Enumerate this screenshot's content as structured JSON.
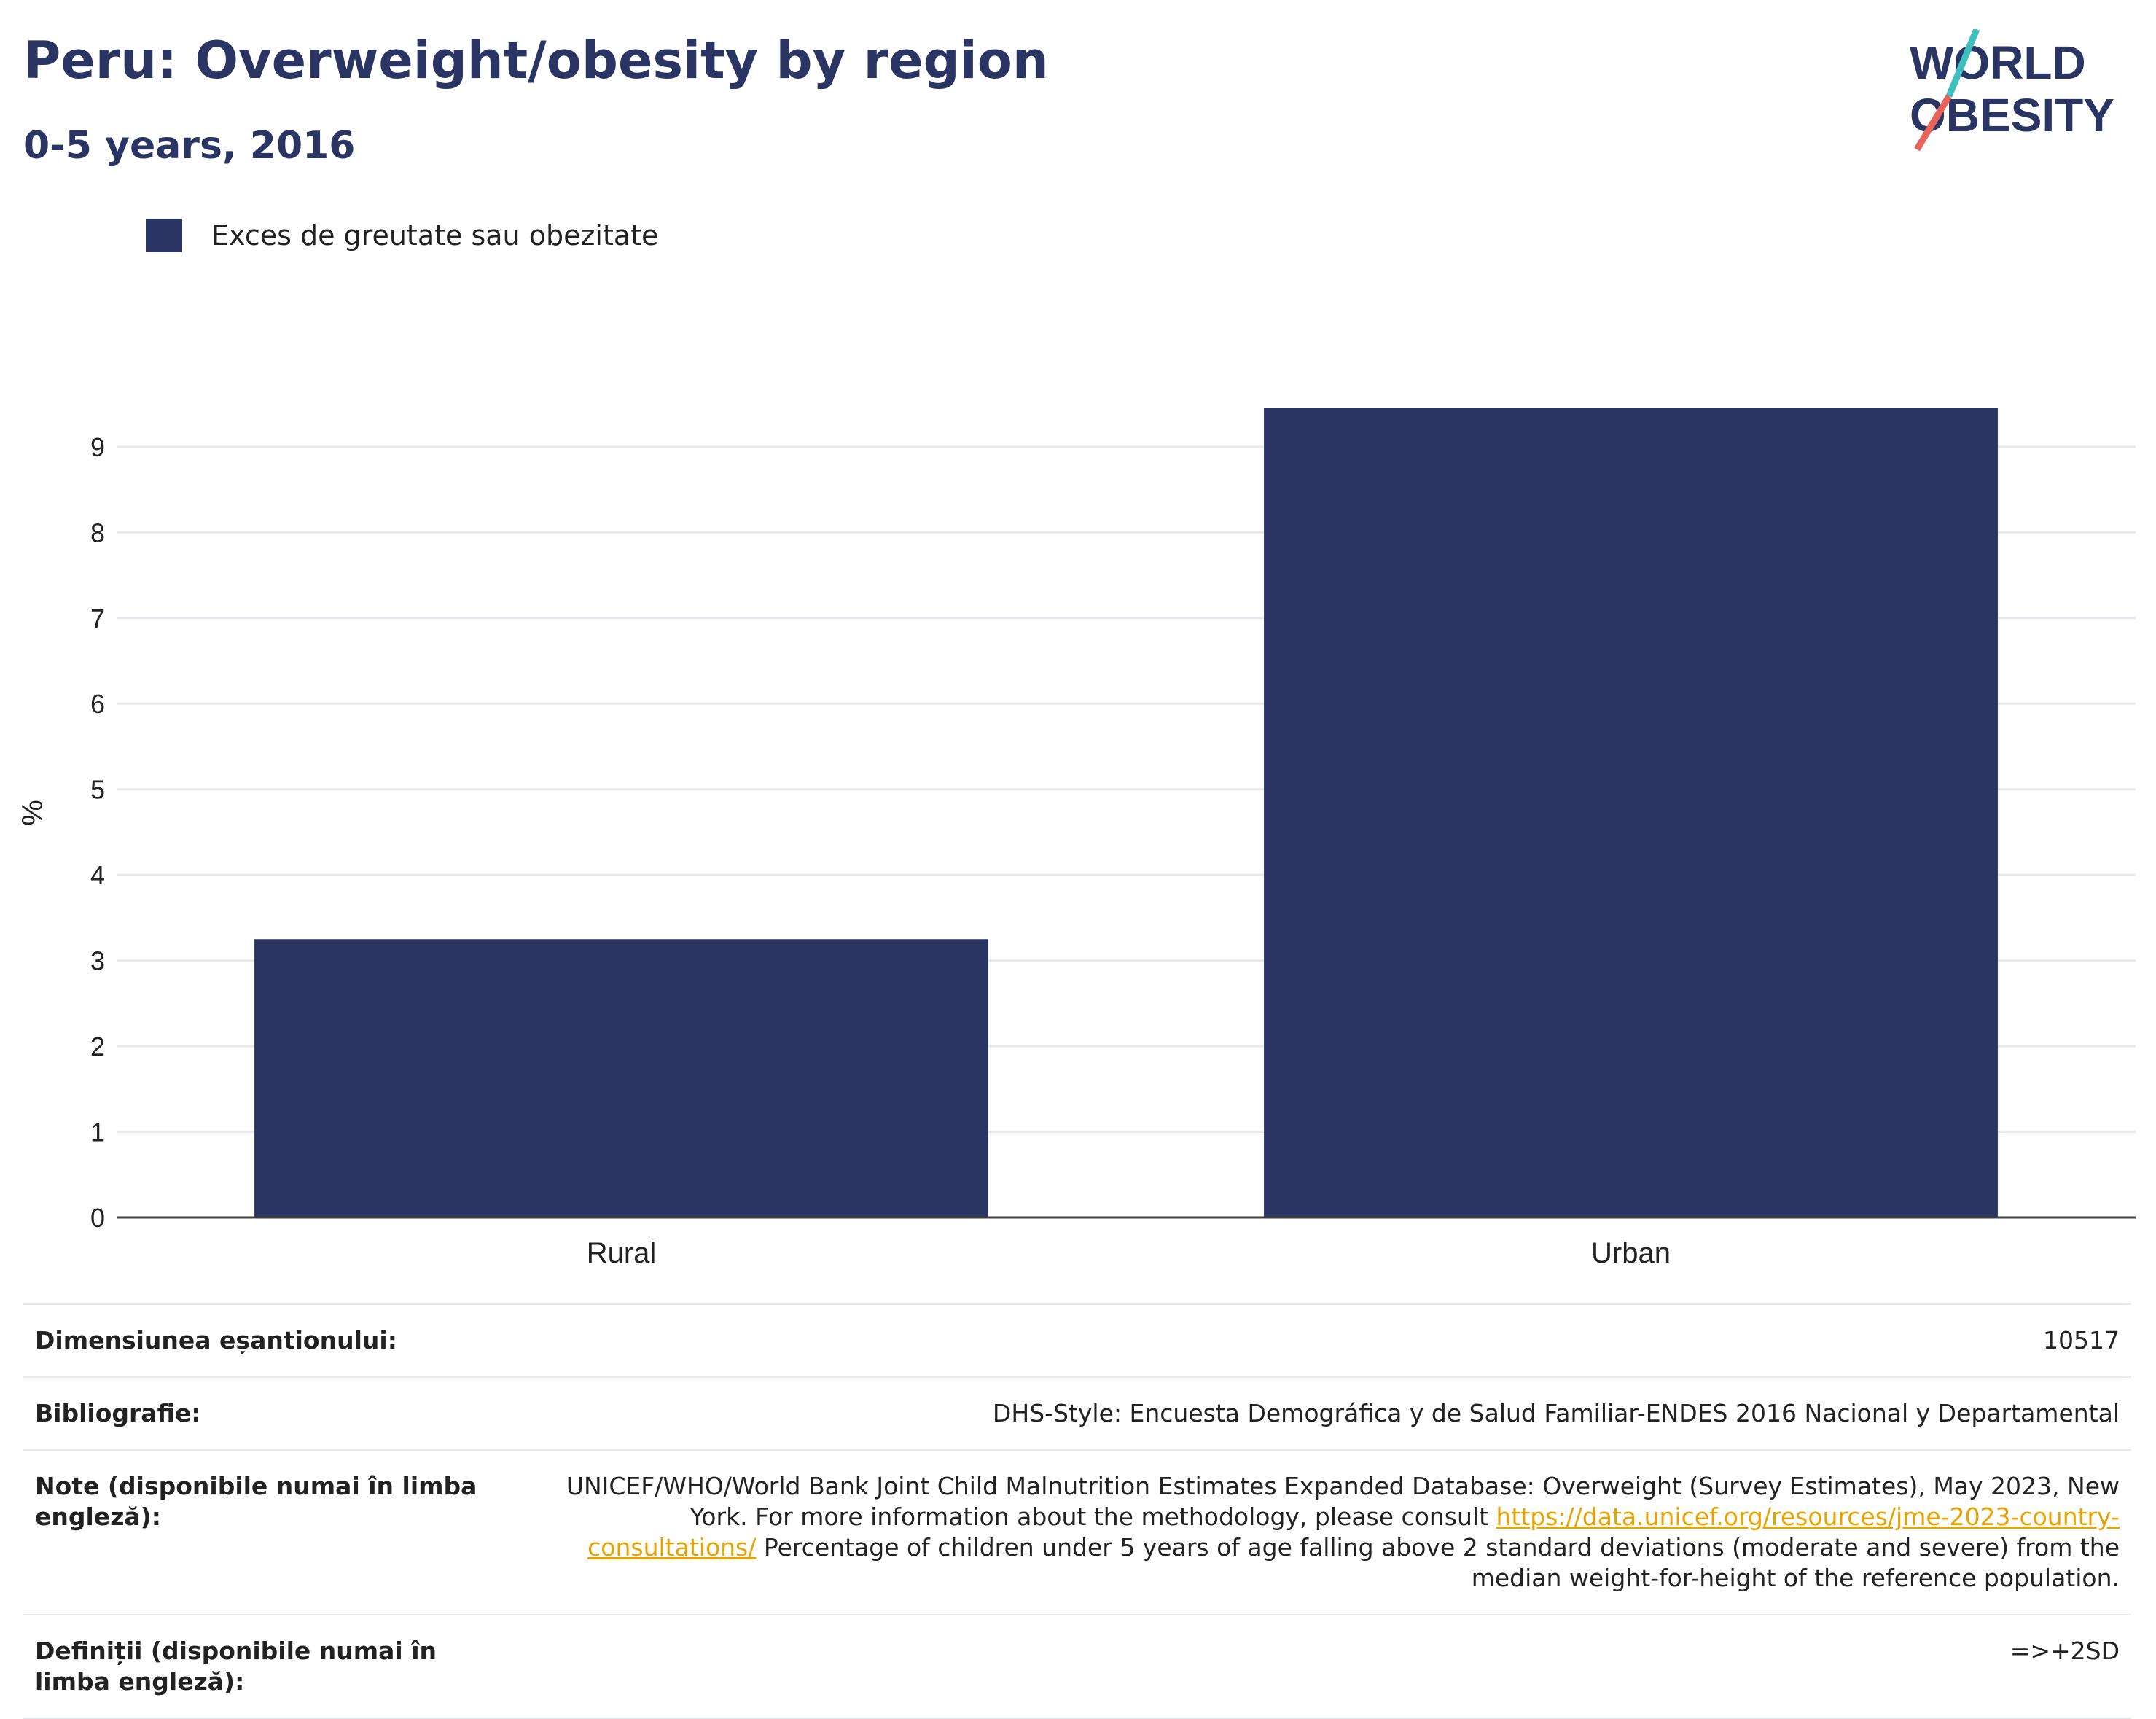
{
  "header": {
    "title": "Peru: Overweight/obesity by region",
    "subtitle": "0-5 years, 2016"
  },
  "logo": {
    "line1": "WORLD",
    "line2": "OBESITY"
  },
  "legend": {
    "label": "Exces de greutate sau obezitate"
  },
  "colors": {
    "bar": "#2a3563",
    "title": "#2a3563",
    "grid": "#e6e9f0",
    "logo_teal": "#3fbfbf",
    "logo_red": "#e8645a",
    "link": "#e8a200"
  },
  "chart_data": {
    "type": "bar",
    "categories": [
      "Rural",
      "Urban"
    ],
    "series": [
      {
        "name": "Exces de greutate sau obezitate",
        "values": [
          3.25,
          9.45
        ]
      }
    ],
    "ylabel": "%",
    "ylim": [
      0,
      9.45
    ],
    "yticks": [
      0,
      1,
      2,
      3,
      4,
      5,
      6,
      7,
      8,
      9
    ],
    "grid": true,
    "legend_position": "top-left"
  },
  "footer": {
    "sample_label": "Dimensiunea eșantionului:",
    "sample_value": "10517",
    "bib_label": "Bibliografie:",
    "bib_value": "DHS-Style: Encuesta Demográfica y de Salud Familiar-ENDES 2016 Nacional y Departamental",
    "notes_label": "Note (disponibile numai în limba engleză):",
    "notes_text_1": "UNICEF/WHO/World Bank Joint Child Malnutrition Estimates Expanded Database: Overweight (Survey Estimates), May 2023, New York. For more information about the methodology, please consult ",
    "notes_link": "https://data.unicef.org/resources/jme-2023-country-consultations/",
    "notes_text_2": " Percentage of children under 5 years of age falling above 2 standard deviations (moderate and severe) from the median weight-for-height of the reference population.",
    "def_label": "Definiții (disponibile numai în limba engleză):",
    "def_value": "=>+2SD"
  }
}
